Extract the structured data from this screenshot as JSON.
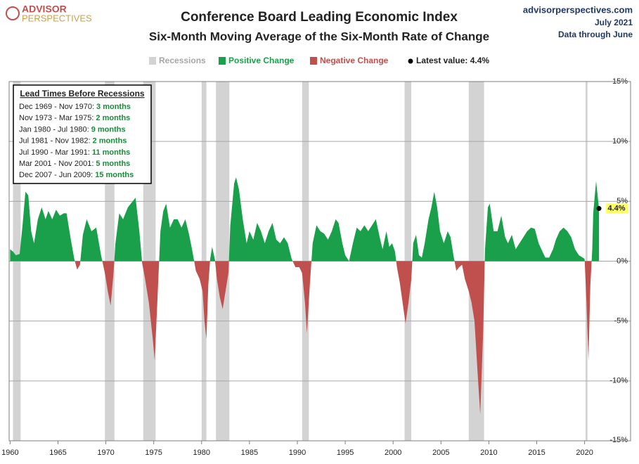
{
  "header": {
    "logo_top": "ADVISOR",
    "logo_bottom": "PERSPECTIVES",
    "site": "advisorperspectives.com",
    "date": "July 2021",
    "note": "Data through June"
  },
  "chart_data": {
    "type": "area",
    "title": "Conference Board Leading Economic Index",
    "subtitle": "Six-Month Moving Average of the Six-Month Rate of Change",
    "legend": {
      "recessions": "Recessions",
      "positive": "Positive Change",
      "negative": "Negative Change",
      "latest": "Latest value: 4.4%"
    },
    "positive_color": "#1aa04a",
    "negative_color": "#c0504d",
    "recession_color": "#d3d3d3",
    "x": [
      1960.0,
      1960.3,
      1960.6,
      1961.0,
      1961.3,
      1961.6,
      1961.9,
      1962.2,
      1962.5,
      1962.9,
      1963.3,
      1963.7,
      1964.0,
      1964.4,
      1964.8,
      1965.2,
      1965.6,
      1965.9,
      1966.3,
      1966.7,
      1967.0,
      1967.3,
      1967.6,
      1968.0,
      1968.5,
      1969.0,
      1969.5,
      1969.9,
      1970.2,
      1970.5,
      1970.8,
      1971.0,
      1971.4,
      1971.8,
      1972.3,
      1972.8,
      1973.1,
      1973.5,
      1973.8,
      1974.1,
      1974.5,
      1974.9,
      1975.1,
      1975.4,
      1975.7,
      1976.0,
      1976.3,
      1976.7,
      1977.1,
      1977.5,
      1977.9,
      1978.3,
      1978.7,
      1979.0,
      1979.4,
      1979.8,
      1980.1,
      1980.3,
      1980.5,
      1980.7,
      1980.9,
      1981.1,
      1981.4,
      1981.6,
      1981.9,
      1982.2,
      1982.5,
      1982.8,
      1983.0,
      1983.4,
      1983.6,
      1983.9,
      1984.3,
      1984.7,
      1985.0,
      1985.4,
      1985.8,
      1986.2,
      1986.6,
      1987.0,
      1987.4,
      1987.8,
      1988.2,
      1988.6,
      1989.0,
      1989.4,
      1989.8,
      1990.2,
      1990.5,
      1990.8,
      1991.0,
      1991.3,
      1991.6,
      1992.0,
      1992.4,
      1992.8,
      1993.2,
      1993.6,
      1994.0,
      1994.3,
      1994.7,
      1995.0,
      1995.4,
      1995.8,
      1996.2,
      1996.6,
      1997.0,
      1997.4,
      1997.8,
      1998.2,
      1998.6,
      1998.9,
      1999.3,
      1999.6,
      1999.9,
      2000.2,
      2000.4,
      2000.7,
      2001.0,
      2001.3,
      2001.6,
      2001.9,
      2002.1,
      2002.4,
      2002.7,
      2003.0,
      2003.3,
      2003.7,
      2004.0,
      2004.3,
      2004.6,
      2004.9,
      2005.3,
      2005.7,
      2006.0,
      2006.3,
      2006.6,
      2006.9,
      2007.2,
      2007.5,
      2007.9,
      2008.2,
      2008.5,
      2008.8,
      2009.1,
      2009.4,
      2009.6,
      2009.9,
      2010.1,
      2010.5,
      2010.9,
      2011.3,
      2011.7,
      2012.0,
      2012.4,
      2012.8,
      2013.2,
      2013.6,
      2014.0,
      2014.4,
      2014.8,
      2015.2,
      2015.6,
      2015.9,
      2016.3,
      2016.7,
      2017.0,
      2017.4,
      2017.8,
      2018.2,
      2018.6,
      2019.0,
      2019.4,
      2019.8,
      2020.0,
      2020.2,
      2020.4,
      2020.6,
      2020.8,
      2020.9,
      2021.2,
      2021.5
    ],
    "values": [
      1.0,
      0.8,
      0.5,
      0.6,
      3.0,
      5.8,
      5.5,
      2.5,
      1.5,
      3.5,
      4.5,
      3.5,
      4.2,
      3.5,
      4.3,
      3.8,
      4.0,
      4.0,
      2.0,
      0.2,
      -0.7,
      -0.3,
      2.2,
      3.5,
      2.5,
      2.8,
      0.5,
      -1.0,
      -2.5,
      -3.7,
      -1.0,
      1.5,
      4.0,
      3.5,
      4.5,
      5.0,
      5.3,
      2.5,
      -0.2,
      -1.5,
      -3.5,
      -6.5,
      -8.3,
      -3.0,
      2.5,
      4.2,
      4.8,
      2.8,
      3.5,
      3.5,
      2.8,
      3.5,
      2.2,
      1.0,
      -0.8,
      -1.5,
      -2.5,
      -5.0,
      -6.5,
      -2.0,
      0.2,
      1.2,
      0.1,
      -1.5,
      -3.0,
      -4.0,
      -2.5,
      -1.0,
      3.0,
      6.5,
      7.0,
      6.0,
      3.5,
      1.5,
      2.5,
      1.8,
      3.2,
      2.5,
      1.5,
      2.5,
      3.2,
      1.8,
      1.5,
      2.0,
      1.5,
      0.2,
      -0.5,
      -0.5,
      -1.0,
      -3.5,
      -6.0,
      -2.0,
      1.5,
      3.0,
      2.5,
      2.3,
      1.8,
      2.5,
      3.5,
      3.2,
      1.5,
      0.5,
      0.0,
      1.5,
      2.8,
      2.5,
      3.0,
      2.5,
      3.0,
      3.5,
      2.0,
      1.0,
      2.5,
      1.2,
      1.5,
      0.8,
      -0.5,
      -1.8,
      -3.5,
      -5.2,
      -3.5,
      -1.5,
      1.5,
      2.2,
      0.5,
      0.3,
      1.5,
      3.5,
      4.5,
      5.8,
      4.5,
      2.5,
      1.5,
      2.5,
      2.0,
      0.5,
      -0.8,
      -0.5,
      -0.3,
      -1.5,
      -2.5,
      -3.5,
      -5.0,
      -9.0,
      -12.8,
      -6.0,
      1.0,
      4.5,
      4.8,
      2.5,
      2.5,
      3.8,
      2.0,
      1.5,
      2.2,
      1.0,
      1.5,
      2.0,
      2.5,
      2.8,
      2.7,
      1.5,
      0.8,
      0.3,
      0.3,
      1.0,
      1.8,
      2.5,
      2.8,
      2.5,
      2.0,
      1.0,
      0.5,
      0.3,
      0.2,
      -3.5,
      -8.3,
      -2.0,
      1.0,
      4.0,
      6.7,
      4.4
    ],
    "recessions": [
      [
        1960.3,
        1961.1
      ],
      [
        1969.9,
        1970.9
      ],
      [
        1973.9,
        1975.2
      ],
      [
        1980.0,
        1980.5
      ],
      [
        1981.5,
        1982.9
      ],
      [
        1990.5,
        1991.2
      ],
      [
        2001.2,
        2001.9
      ],
      [
        2007.9,
        2009.5
      ],
      [
        2020.1,
        2020.3
      ]
    ],
    "latest": {
      "x": 2021.5,
      "value": 4.4,
      "label": "4.4%"
    },
    "xlim": [
      1959.9,
      2024.8
    ],
    "xticks": [
      1960,
      1965,
      1970,
      1975,
      1980,
      1985,
      1990,
      1995,
      2000,
      2005,
      2010,
      2015,
      2020
    ],
    "ylim": [
      -15,
      15
    ],
    "yticks": [
      {
        "value": -15,
        "label": "-15%"
      },
      {
        "value": -10,
        "label": "-10%"
      },
      {
        "value": -5,
        "label": "-5%"
      },
      {
        "value": 0,
        "label": "0%"
      },
      {
        "value": 5,
        "label": "5%"
      },
      {
        "value": 10,
        "label": "10%"
      },
      {
        "value": 15,
        "label": "15%"
      }
    ],
    "grid": true,
    "lead_box": {
      "title": "Lead Times Before Recessions",
      "rows": [
        {
          "period": "Dec 1969 - Nov 1970:",
          "lead": "3 months"
        },
        {
          "period": "Nov 1973 - Mar 1975:",
          "lead": "2 months"
        },
        {
          "period": "Jan 1980 - Jul 1980:",
          "lead": "9 months"
        },
        {
          "period": "Jul 1981 - Nov 1982:",
          "lead": "2 months"
        },
        {
          "period": "Jul 1990 - Mar 1991:",
          "lead": "11 months"
        },
        {
          "period": "Mar 2001 - Nov 2001:",
          "lead": "5 months"
        },
        {
          "period": "Dec 2007 - Jun 2009:",
          "lead": "15 months"
        }
      ]
    }
  }
}
